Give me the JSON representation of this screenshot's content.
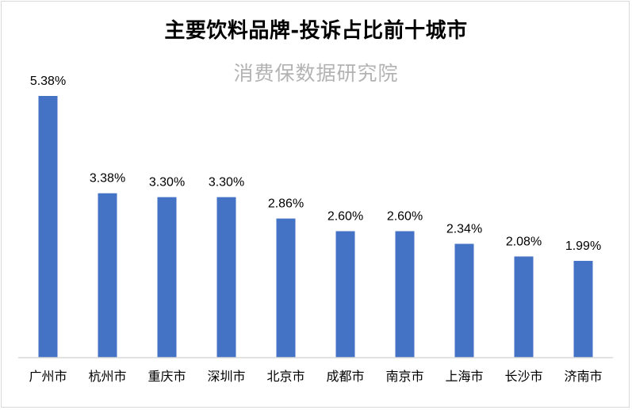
{
  "chart_data": {
    "type": "bar",
    "title": "主要饮料品牌-投诉占比前十城市",
    "subtitle": "消费保数据研究院",
    "categories": [
      "广州市",
      "杭州市",
      "重庆市",
      "深圳市",
      "北京市",
      "成都市",
      "南京市",
      "上海市",
      "长沙市",
      "济南市"
    ],
    "values": [
      5.38,
      3.38,
      3.3,
      3.3,
      2.86,
      2.6,
      2.6,
      2.34,
      2.08,
      1.99
    ],
    "value_labels": [
      "5.38%",
      "3.38%",
      "3.30%",
      "3.30%",
      "2.86%",
      "2.60%",
      "2.60%",
      "2.34%",
      "2.08%",
      "1.99%"
    ],
    "ylim": [
      0,
      5.38
    ],
    "grid": false,
    "bar_color": "#4472c4"
  }
}
